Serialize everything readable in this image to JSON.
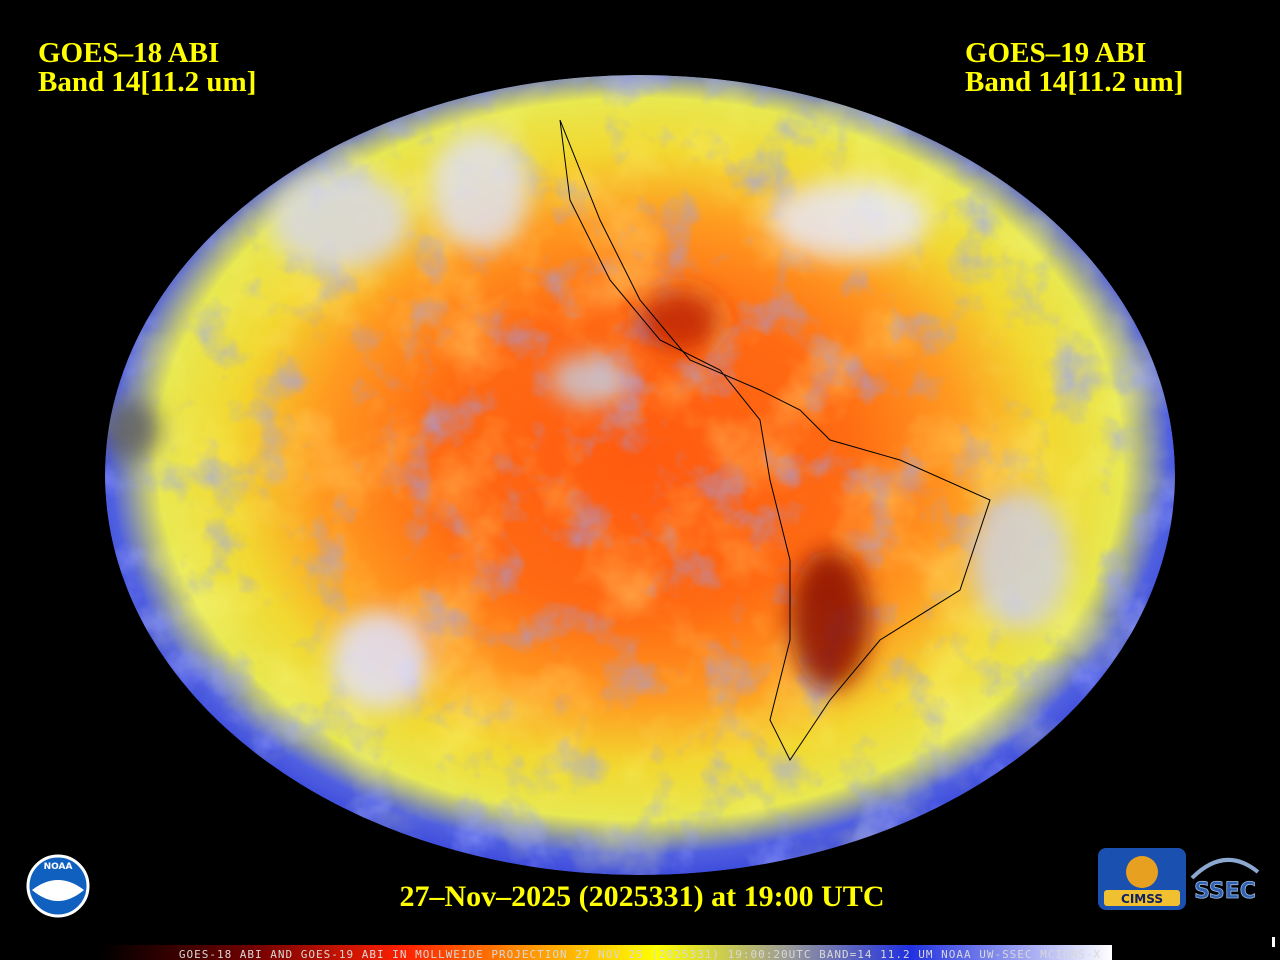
{
  "left_label": {
    "line1": "GOES–18 ABI",
    "line2": "Band 14[11.2 um]"
  },
  "right_label": {
    "line1": "GOES–19 ABI",
    "line2": "Band 14[11.2 um]"
  },
  "timestamp": "27–Nov–2025 (2025331) at 19:00 UTC",
  "footer": "GOES-18 ABI AND GOES-19 ABI IN MOLLWEIDE PROJECTION 27 NOV 25 (2025331) 19:00:20UTC BAND=14 11.2 UM NOAA UW-SSEC MCIDAS-X",
  "logos": {
    "noaa": "NOAA",
    "cimss": "CIMSS",
    "ssec": "SSEC"
  }
}
